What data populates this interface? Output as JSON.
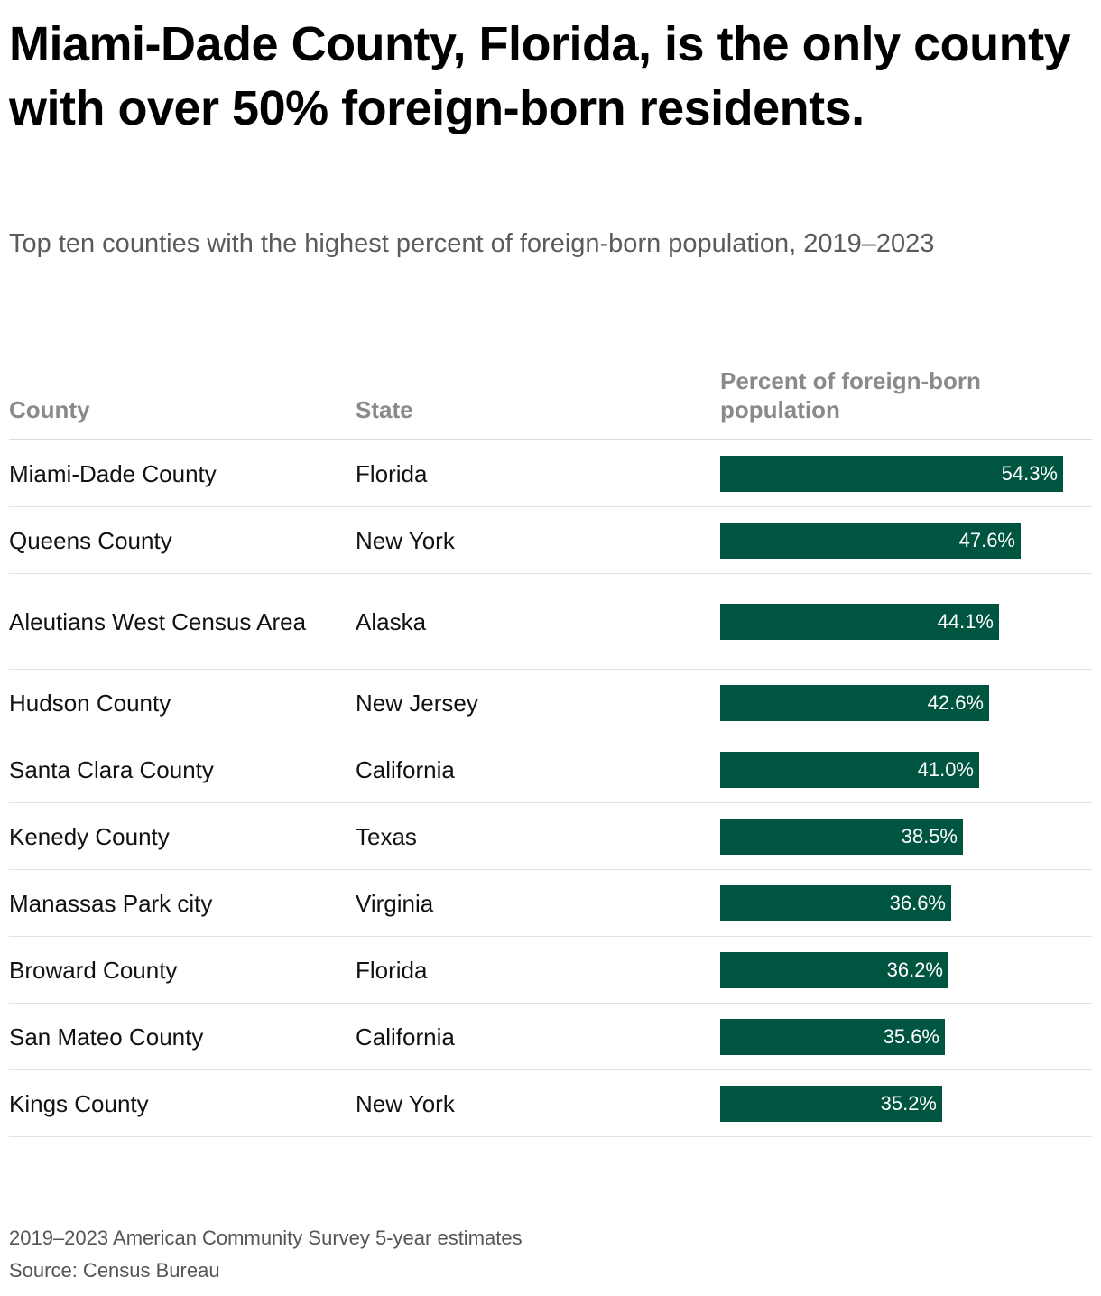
{
  "header": {
    "title": "Miami-Dade County, Florida, is the only county with over 50% foreign-born residents.",
    "subtitle": "Top ten counties with the highest percent of foreign-born population, 2019–2023"
  },
  "table": {
    "columns": [
      "County",
      "State",
      "Percent of foreign-born population"
    ]
  },
  "chart_data": {
    "type": "bar",
    "orientation": "horizontal",
    "categories": [
      "Miami-Dade County",
      "Queens County",
      "Aleutians West Census Area",
      "Hudson County",
      "Santa Clara County",
      "Kenedy County",
      "Manassas Park city",
      "Broward County",
      "San Mateo County",
      "Kings County"
    ],
    "states": [
      "Florida",
      "New York",
      "Alaska",
      "New Jersey",
      "California",
      "Texas",
      "Virginia",
      "Florida",
      "California",
      "New York"
    ],
    "values": [
      54.3,
      47.6,
      44.1,
      42.6,
      41.0,
      38.5,
      36.6,
      36.2,
      35.6,
      35.2
    ],
    "value_labels": [
      "54.3%",
      "47.6%",
      "44.1%",
      "42.6%",
      "41.0%",
      "38.5%",
      "36.6%",
      "36.2%",
      "35.6%",
      "35.2%"
    ],
    "bar_color": "#005541",
    "xlim": [
      0,
      54.3
    ],
    "grid": false
  },
  "footer": {
    "note": "2019–2023 American Community Survey 5-year estimates",
    "source": "Source: Census Bureau"
  }
}
